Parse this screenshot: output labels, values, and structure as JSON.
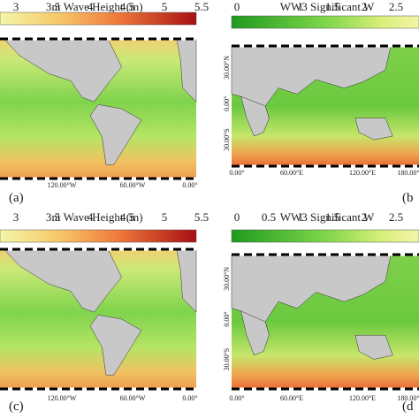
{
  "panels": [
    {
      "title": "nt Wave Height (m)",
      "ticks": [
        "3",
        "3.5",
        "4",
        "4.5",
        "5",
        "5.5"
      ],
      "x_labels": [
        "120.00°W",
        "60.00°W",
        "0.00°"
      ],
      "label": "(a)"
    },
    {
      "title": "WW3 Significant W",
      "ticks": [
        "0",
        "1",
        "1.5",
        "2",
        "2.5"
      ],
      "x_labels": [
        "0.00°",
        "60.00°E",
        "120.00°E",
        "180.00°"
      ],
      "y_labels": [
        "30.00°N",
        "0.00°",
        "30.00°S"
      ],
      "label": "(b"
    },
    {
      "title": "nt Wave Height (m)",
      "ticks": [
        "3",
        "3.5",
        "4",
        "4.5",
        "5",
        "5.5"
      ],
      "x_labels": [
        "120.00°W",
        "60.00°W",
        "0.00°"
      ],
      "label": "(c)"
    },
    {
      "title": "WW3 Significant W",
      "ticks": [
        "0",
        "0.5",
        "1",
        "1.5",
        "2",
        "2.5"
      ],
      "x_labels": [
        "0.00°",
        "60.00°E",
        "120.00°E",
        "180.00°"
      ],
      "y_labels": [
        "30.00°N",
        "0.00°",
        "30.00°S"
      ],
      "label": "(d"
    }
  ]
}
